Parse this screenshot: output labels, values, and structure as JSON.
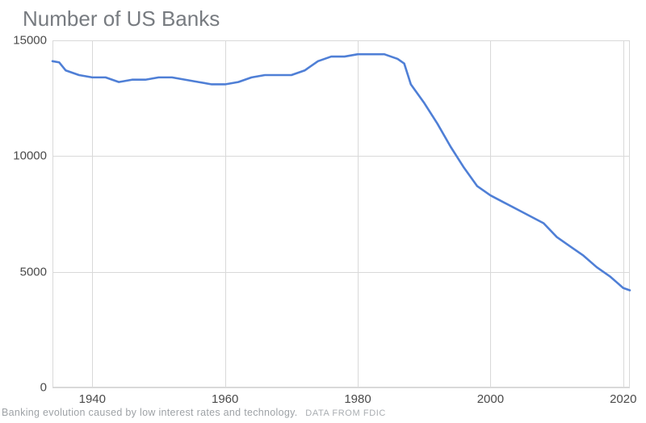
{
  "chart": {
    "type": "line",
    "title": "Number of US Banks",
    "title_color": "#777b80",
    "title_fontsize": 26,
    "background_color": "#ffffff",
    "grid_color": "#d9d9d9",
    "axis_label_color": "#4a4a4a",
    "axis_label_fontsize": 15,
    "line_color": "#4f7fd6",
    "line_width": 2.6,
    "xlim": [
      1934,
      2021
    ],
    "ylim": [
      0,
      15000
    ],
    "xticks": [
      1940,
      1960,
      1980,
      2000,
      2020
    ],
    "yticks": [
      0,
      5000,
      10000,
      15000
    ],
    "data": {
      "x": [
        1934,
        1935,
        1936,
        1938,
        1940,
        1942,
        1944,
        1946,
        1948,
        1950,
        1952,
        1954,
        1956,
        1958,
        1960,
        1962,
        1964,
        1966,
        1968,
        1970,
        1972,
        1974,
        1976,
        1978,
        1980,
        1982,
        1984,
        1986,
        1987,
        1988,
        1990,
        1992,
        1994,
        1996,
        1998,
        2000,
        2002,
        2004,
        2006,
        2008,
        2010,
        2012,
        2014,
        2016,
        2018,
        2020,
        2021
      ],
      "y": [
        14100,
        14050,
        13700,
        13500,
        13400,
        13400,
        13200,
        13300,
        13300,
        13400,
        13400,
        13300,
        13200,
        13100,
        13100,
        13200,
        13400,
        13500,
        13500,
        13500,
        13700,
        14100,
        14300,
        14300,
        14400,
        14400,
        14400,
        14200,
        14000,
        13100,
        12300,
        11400,
        10400,
        9500,
        8700,
        8300,
        8000,
        7700,
        7400,
        7100,
        6500,
        6100,
        5700,
        5200,
        4800,
        4300,
        4200
      ]
    }
  },
  "caption": {
    "text": "Banking evolution caused by low interest rates and technology.",
    "source": "DATA FROM FDIC",
    "text_color": "#9ea2a6",
    "fontsize": 12.5
  }
}
